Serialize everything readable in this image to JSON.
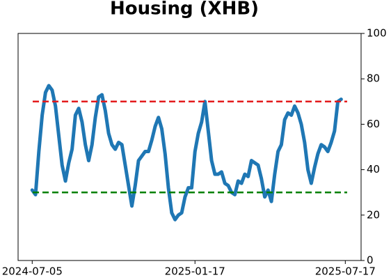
{
  "chart_data": {
    "type": "line",
    "title": "Housing (XHB)",
    "x": [
      "2024-07-05",
      "2024-07-09",
      "2024-07-13",
      "2024-07-17",
      "2024-07-21",
      "2024-07-25",
      "2024-07-29",
      "2024-08-02",
      "2024-08-06",
      "2024-08-10",
      "2024-08-14",
      "2024-08-18",
      "2024-08-22",
      "2024-08-26",
      "2024-08-30",
      "2024-09-03",
      "2024-09-07",
      "2024-09-11",
      "2024-09-15",
      "2024-09-19",
      "2024-09-23",
      "2024-09-27",
      "2024-10-01",
      "2024-10-05",
      "2024-10-09",
      "2024-10-13",
      "2024-10-17",
      "2024-10-21",
      "2024-10-25",
      "2024-10-29",
      "2024-11-02",
      "2024-11-06",
      "2024-11-10",
      "2024-11-14",
      "2024-11-18",
      "2024-11-22",
      "2024-11-26",
      "2024-11-30",
      "2024-12-04",
      "2024-12-08",
      "2024-12-12",
      "2024-12-16",
      "2024-12-20",
      "2024-12-24",
      "2024-12-28",
      "2025-01-01",
      "2025-01-05",
      "2025-01-09",
      "2025-01-13",
      "2025-01-17",
      "2025-01-21",
      "2025-01-25",
      "2025-01-29",
      "2025-02-02",
      "2025-02-06",
      "2025-02-10",
      "2025-02-14",
      "2025-02-18",
      "2025-02-22",
      "2025-02-26",
      "2025-03-02",
      "2025-03-06",
      "2025-03-10",
      "2025-03-14",
      "2025-03-18",
      "2025-03-22",
      "2025-03-26",
      "2025-03-30",
      "2025-04-03",
      "2025-04-07",
      "2025-04-11",
      "2025-04-15",
      "2025-04-19",
      "2025-04-23",
      "2025-04-27",
      "2025-05-01",
      "2025-05-05",
      "2025-05-09",
      "2025-05-13",
      "2025-05-17",
      "2025-05-21",
      "2025-05-25",
      "2025-05-29",
      "2025-06-02",
      "2025-06-06",
      "2025-06-10",
      "2025-06-14",
      "2025-06-18",
      "2025-06-22",
      "2025-06-26",
      "2025-06-30",
      "2025-07-04",
      "2025-07-08",
      "2025-07-12"
    ],
    "values": [
      31,
      29,
      48,
      64,
      74,
      77,
      75,
      68,
      55,
      42,
      35,
      43,
      49,
      64,
      67,
      61,
      51,
      44,
      51,
      63,
      72,
      73,
      66,
      56,
      51,
      49,
      52,
      51,
      42,
      33,
      24,
      33,
      44,
      46,
      48,
      48,
      53,
      59,
      63,
      58,
      47,
      32,
      21,
      18,
      20,
      21,
      28,
      32,
      32,
      48,
      56,
      61,
      70,
      57,
      44,
      38,
      38,
      39,
      34,
      33,
      30,
      29,
      35,
      34,
      38,
      37,
      44,
      43,
      42,
      36,
      28,
      31,
      26,
      38,
      48,
      51,
      62,
      65,
      64,
      68,
      65,
      60,
      52,
      40,
      34,
      41,
      47,
      51,
      50,
      48,
      52,
      57,
      70,
      71
    ],
    "color": "#1f77b4",
    "xlim": [
      "2024-06-18",
      "2025-08-05"
    ],
    "xticks": [
      "2024-07-05",
      "2025-01-17",
      "2025-07-17"
    ],
    "ylim": [
      0,
      100
    ],
    "yticks": [
      0,
      20,
      40,
      60,
      80,
      100
    ],
    "y_axis_side": "right",
    "hlines": [
      {
        "value": 70,
        "color": "#e31a1c"
      },
      {
        "value": 30,
        "color": "#008000"
      }
    ]
  }
}
